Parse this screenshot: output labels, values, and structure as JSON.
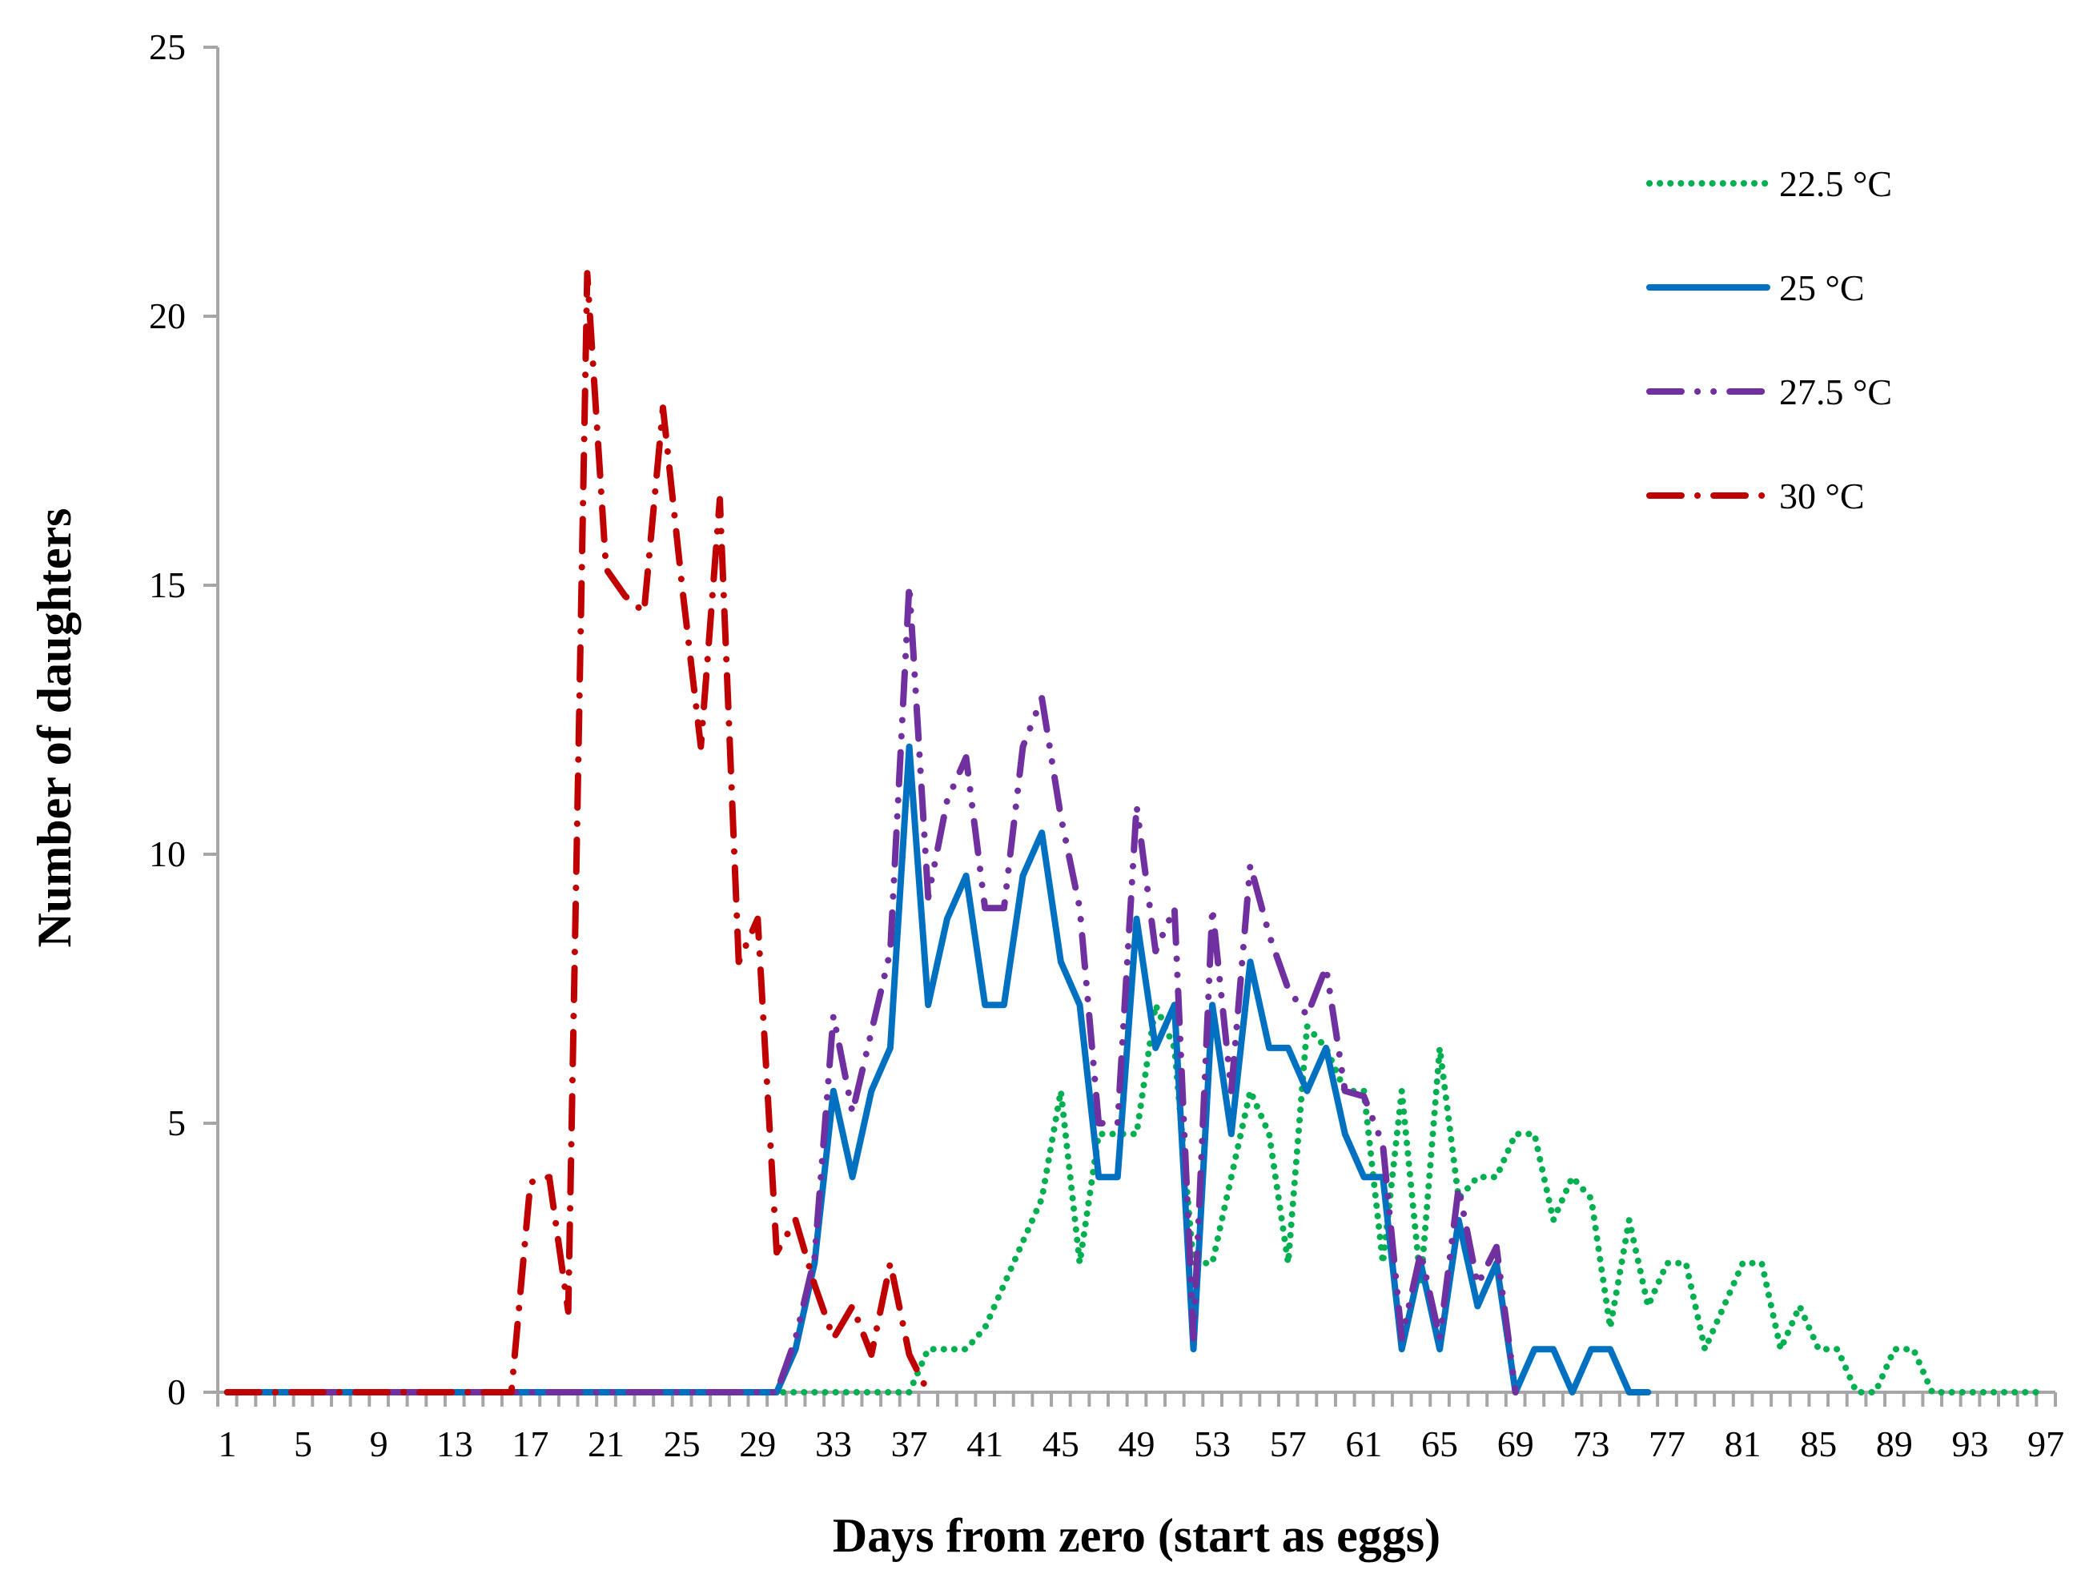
{
  "chart_data": {
    "type": "line",
    "title": "",
    "xlabel": "Days from zero (start as eggs)",
    "ylabel": "Number of daughters",
    "ylim": [
      0,
      25
    ],
    "yticks": [
      "0",
      "5",
      "10",
      "15",
      "20",
      "25"
    ],
    "xticks": [
      "1",
      "5",
      "9",
      "13",
      "17",
      "21",
      "25",
      "29",
      "33",
      "37",
      "41",
      "45",
      "49",
      "53",
      "57",
      "61",
      "65",
      "69",
      "73",
      "77",
      "81",
      "85",
      "89",
      "93",
      "97"
    ],
    "x_range": [
      1,
      97
    ],
    "grid": false,
    "legend_position": "top-right",
    "series": [
      {
        "name": "22.5 °C",
        "color": "#00B050",
        "dash": "dotted",
        "start_day": 1,
        "values": [
          0,
          0,
          0,
          0,
          0,
          0,
          0,
          0,
          0,
          0,
          0,
          0,
          0,
          0,
          0,
          0,
          0,
          0,
          0,
          0,
          0,
          0,
          0,
          0,
          0,
          0,
          0,
          0,
          0,
          0,
          0,
          0,
          0,
          0,
          0,
          0,
          0,
          0.8,
          0.8,
          0.8,
          1.2,
          2.0,
          2.8,
          3.6,
          5.6,
          2.4,
          4.8,
          4.8,
          4.8,
          7.2,
          6.4,
          2.4,
          2.4,
          4.0,
          5.6,
          4.8,
          2.4,
          6.8,
          6.4,
          5.6,
          5.6,
          2.4,
          5.6,
          2.0,
          6.4,
          3.6,
          4.0,
          4.0,
          4.8,
          4.8,
          3.2,
          4.0,
          3.6,
          1.2,
          3.2,
          1.6,
          2.4,
          2.4,
          0.8,
          1.6,
          2.4,
          2.4,
          0.8,
          1.6,
          0.8,
          0.8,
          0,
          0,
          0.8,
          0.8,
          0,
          0,
          0,
          0,
          0,
          0,
          0
        ]
      },
      {
        "name": "25 °C",
        "color": "#0070C0",
        "dash": "solid",
        "start_day": 1,
        "values": [
          0,
          0,
          0,
          0,
          0,
          0,
          0,
          0,
          0,
          0,
          0,
          0,
          0,
          0,
          0,
          0,
          0,
          0,
          0,
          0,
          0,
          0,
          0,
          0,
          0,
          0,
          0,
          0,
          0,
          0,
          0.8,
          2.4,
          5.6,
          4.0,
          5.6,
          6.4,
          12.0,
          7.2,
          8.8,
          9.6,
          7.2,
          7.2,
          9.6,
          10.4,
          8.0,
          7.2,
          4.0,
          4.0,
          8.8,
          6.4,
          7.2,
          0.8,
          7.2,
          4.8,
          8.0,
          6.4,
          6.4,
          5.6,
          6.4,
          4.8,
          4.0,
          4.0,
          0.8,
          2.4,
          0.8,
          3.2,
          1.6,
          2.4,
          0,
          0.8,
          0.8,
          0,
          0.8,
          0.8,
          0,
          0
        ]
      },
      {
        "name": "27.5 °C",
        "color": "#7030A0",
        "dash": "long-dash-dot-dot",
        "start_day": 1,
        "values": [
          0,
          0,
          0,
          0,
          0,
          0,
          0,
          0,
          0,
          0,
          0,
          0,
          0,
          0,
          0,
          0,
          0,
          0,
          0,
          0,
          0,
          0,
          0,
          0,
          0,
          0,
          0,
          0,
          0,
          0,
          1.0,
          2.5,
          7.0,
          5.2,
          6.7,
          8.2,
          15.0,
          9.2,
          11.0,
          11.8,
          9.0,
          9.0,
          12.0,
          12.9,
          10.7,
          9.0,
          5.0,
          5.0,
          10.9,
          8.2,
          9.0,
          1.0,
          9.0,
          5.6,
          9.8,
          8.5,
          7.5,
          7.0,
          7.9,
          5.6,
          5.5,
          4.6,
          1.0,
          2.6,
          1.0,
          3.8,
          2.0,
          2.7,
          0
        ]
      },
      {
        "name": "30 °C",
        "color": "#C00000",
        "dash": "long-dash-dot",
        "start_day": 1,
        "values": [
          0,
          0,
          0,
          0,
          0,
          0,
          0,
          0,
          0,
          0,
          0,
          0,
          0,
          0,
          0,
          0,
          3.9,
          4.0,
          1.5,
          20.8,
          15.3,
          14.8,
          14.5,
          18.3,
          15.0,
          12.0,
          16.6,
          8.0,
          8.8,
          2.6,
          3.2,
          2.0,
          1.0,
          1.6,
          0.7,
          2.4,
          0.7,
          0
        ]
      }
    ]
  }
}
